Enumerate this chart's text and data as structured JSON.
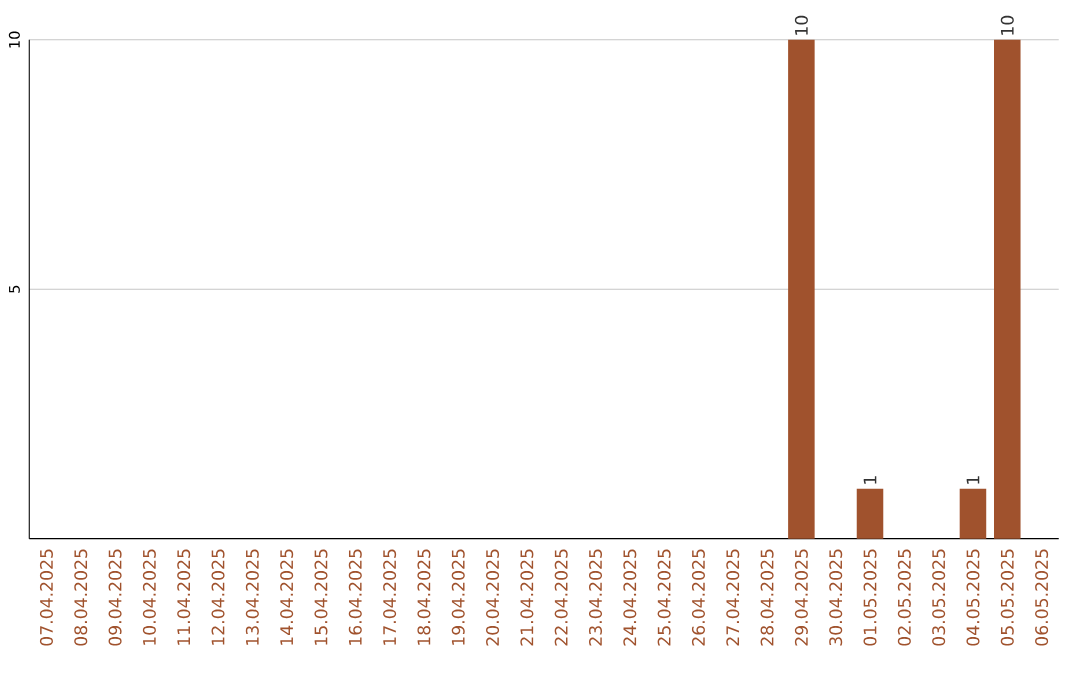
{
  "chart_data": {
    "type": "bar",
    "categories": [
      "07.04.2025",
      "08.04.2025",
      "09.04.2025",
      "10.04.2025",
      "11.04.2025",
      "12.04.2025",
      "13.04.2025",
      "14.04.2025",
      "15.04.2025",
      "16.04.2025",
      "17.04.2025",
      "18.04.2025",
      "19.04.2025",
      "20.04.2025",
      "21.04.2025",
      "22.04.2025",
      "23.04.2025",
      "24.04.2025",
      "25.04.2025",
      "26.04.2025",
      "27.04.2025",
      "28.04.2025",
      "29.04.2025",
      "30.04.2025",
      "01.05.2025",
      "02.05.2025",
      "03.05.2025",
      "04.05.2025",
      "05.05.2025",
      "06.05.2025"
    ],
    "values": [
      0,
      0,
      0,
      0,
      0,
      0,
      0,
      0,
      0,
      0,
      0,
      0,
      0,
      0,
      0,
      0,
      0,
      0,
      0,
      0,
      0,
      0,
      10,
      0,
      1,
      0,
      0,
      1,
      10,
      0
    ],
    "value_labels": [
      null,
      null,
      null,
      null,
      null,
      null,
      null,
      null,
      null,
      null,
      null,
      null,
      null,
      null,
      null,
      null,
      null,
      null,
      null,
      null,
      null,
      null,
      "10",
      null,
      "1",
      null,
      null,
      "1",
      "10",
      null
    ],
    "color": "#a0522d",
    "ylim": [
      0,
      10
    ],
    "yticks": [
      5,
      10
    ],
    "grid": "y"
  }
}
